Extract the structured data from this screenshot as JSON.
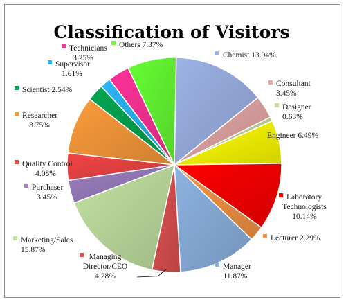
{
  "chart_data": {
    "type": "pie",
    "title": "Classification of Visitors",
    "slices": [
      {
        "name": "Chemist",
        "value": 13.94,
        "label": "13.94%",
        "color": "#9db3e6"
      },
      {
        "name": "Consultant",
        "value": 3.45,
        "label": "3.45%",
        "color": "#e5a8a6"
      },
      {
        "name": "Designer",
        "value": 0.63,
        "label": "0.63%",
        "color": "#c4dc97"
      },
      {
        "name": "Engineer",
        "value": 6.49,
        "label": "6.49%",
        "color": "#ffff00"
      },
      {
        "name": "Laboratory Technologists",
        "value": 10.14,
        "label": "10.14%",
        "color": "#ff0000"
      },
      {
        "name": "Lecturer",
        "value": 2.29,
        "label": "2.29%",
        "color": "#f79646"
      },
      {
        "name": "Manager",
        "value": 11.87,
        "label": "11.87%",
        "color": "#8db3e2"
      },
      {
        "name": "Managing Director/CEO",
        "value": 4.28,
        "label": "4.28%",
        "color": "#e05252"
      },
      {
        "name": "Marketing/Sales",
        "value": 15.87,
        "label": "15.87%",
        "color": "#c3e2a2"
      },
      {
        "name": "Purchaser",
        "value": 3.45,
        "label": "3.45%",
        "color": "#9b7fbf"
      },
      {
        "name": "Quality Control",
        "value": 4.08,
        "label": "4.08%",
        "color": "#f24545"
      },
      {
        "name": "Researcher",
        "value": 8.75,
        "label": "8.75%",
        "color": "#fb9c3c"
      },
      {
        "name": "Scientist",
        "value": 2.54,
        "label": "2.54%",
        "color": "#00a651"
      },
      {
        "name": "Supervisor",
        "value": 1.61,
        "label": "1.61%",
        "color": "#29b6f6"
      },
      {
        "name": "Technicians",
        "value": 3.25,
        "label": "3.25%",
        "color": "#ff3399"
      },
      {
        "name": "Others",
        "value": 7.37,
        "label": "7.37%",
        "color": "#66ff33"
      }
    ]
  }
}
